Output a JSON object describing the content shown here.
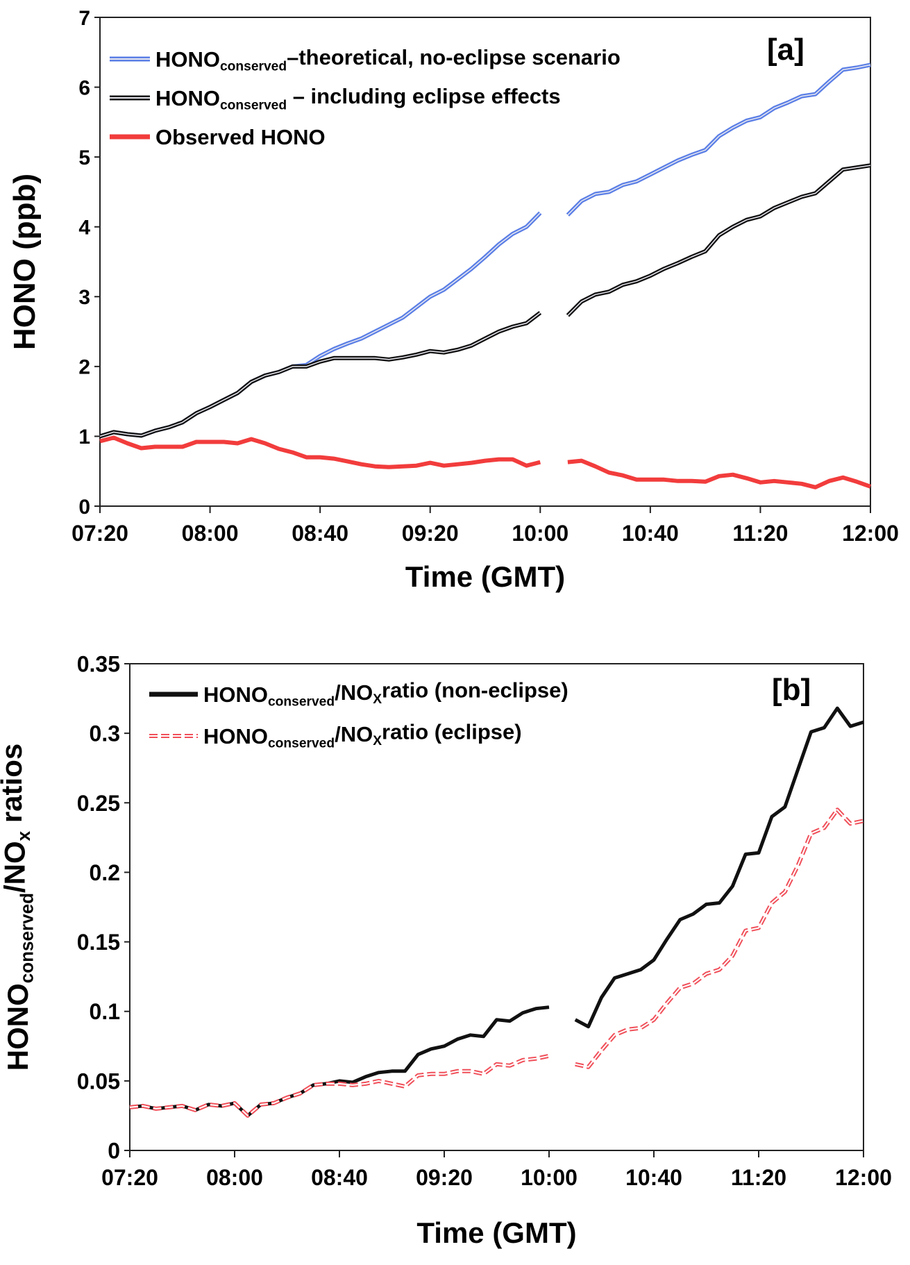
{
  "chart_data": [
    {
      "type": "line",
      "panel_label": "[a]",
      "xlabel": "Time (GMT)",
      "ylabel": "HONO (ppb)",
      "ylim": [
        0,
        7
      ],
      "yticks": [
        "0",
        "1",
        "2",
        "3",
        "4",
        "5",
        "6",
        "7"
      ],
      "xticks": [
        "07:20",
        "08:00",
        "08:40",
        "09:20",
        "10:00",
        "10:40",
        "11:20",
        "12:00"
      ],
      "grid": false,
      "legend_position": "top-left",
      "x": [
        "07:20",
        "07:25",
        "07:30",
        "07:35",
        "07:40",
        "07:45",
        "07:50",
        "07:55",
        "08:00",
        "08:05",
        "08:10",
        "08:15",
        "08:20",
        "08:25",
        "08:30",
        "08:35",
        "08:40",
        "08:45",
        "08:50",
        "08:55",
        "09:00",
        "09:05",
        "09:10",
        "09:15",
        "09:20",
        "09:25",
        "09:30",
        "09:35",
        "09:40",
        "09:45",
        "09:50",
        "09:55",
        "10:00",
        "10:05",
        "10:10",
        "10:15",
        "10:20",
        "10:25",
        "10:30",
        "10:35",
        "10:40",
        "10:45",
        "10:50",
        "10:55",
        "11:00",
        "11:05",
        "11:10",
        "11:15",
        "11:20",
        "11:25",
        "11:30",
        "11:35",
        "11:40",
        "11:45",
        "11:50",
        "11:55",
        "12:00"
      ],
      "series": [
        {
          "name_main": "HONO",
          "name_sub": "conserved",
          "name_rest": "–theoretical, no-eclipse scenario",
          "color": "#5b7fe6",
          "style": "double",
          "values": [
            1.0,
            1.06,
            1.03,
            1.01,
            1.08,
            1.13,
            1.2,
            1.33,
            1.42,
            1.52,
            1.62,
            1.78,
            1.87,
            1.92,
            2.0,
            2.02,
            2.15,
            2.25,
            2.33,
            2.4,
            2.5,
            2.6,
            2.7,
            2.85,
            3.0,
            3.1,
            3.25,
            3.4,
            3.57,
            3.75,
            3.9,
            4.0,
            4.2,
            null,
            4.17,
            4.37,
            4.47,
            4.5,
            4.6,
            4.65,
            4.75,
            4.85,
            4.95,
            5.03,
            5.1,
            5.3,
            5.42,
            5.52,
            5.57,
            5.7,
            5.78,
            5.87,
            5.9,
            6.08,
            6.25,
            6.28,
            6.32
          ]
        },
        {
          "name_main": "HONO",
          "name_sub": "conserved",
          "name_rest": " – including eclipse effects",
          "color": "#111111",
          "style": "double",
          "values": [
            1.0,
            1.06,
            1.03,
            1.01,
            1.08,
            1.13,
            1.2,
            1.33,
            1.42,
            1.52,
            1.62,
            1.78,
            1.87,
            1.92,
            2.0,
            2.0,
            2.07,
            2.12,
            2.12,
            2.12,
            2.12,
            2.1,
            2.13,
            2.17,
            2.22,
            2.2,
            2.24,
            2.3,
            2.4,
            2.5,
            2.57,
            2.62,
            2.77,
            null,
            2.73,
            2.93,
            3.03,
            3.07,
            3.17,
            3.22,
            3.3,
            3.4,
            3.48,
            3.57,
            3.65,
            3.88,
            4.0,
            4.1,
            4.15,
            4.27,
            4.35,
            4.43,
            4.48,
            4.65,
            4.82,
            4.85,
            4.88
          ]
        },
        {
          "name_main": "Observed HONO",
          "name_sub": "",
          "name_rest": "",
          "color": "#f23c3c",
          "style": "solid",
          "values": [
            0.93,
            0.98,
            0.9,
            0.83,
            0.85,
            0.85,
            0.85,
            0.92,
            0.92,
            0.92,
            0.9,
            0.96,
            0.9,
            0.82,
            0.77,
            0.7,
            0.7,
            0.68,
            0.64,
            0.6,
            0.57,
            0.56,
            0.57,
            0.58,
            0.62,
            0.58,
            0.6,
            0.62,
            0.65,
            0.67,
            0.67,
            0.58,
            0.63,
            null,
            0.63,
            0.65,
            0.57,
            0.48,
            0.44,
            0.38,
            0.38,
            0.38,
            0.36,
            0.36,
            0.35,
            0.43,
            0.45,
            0.4,
            0.34,
            0.36,
            0.34,
            0.32,
            0.27,
            0.36,
            0.41,
            0.35,
            0.28
          ]
        }
      ]
    },
    {
      "type": "line",
      "panel_label": "[b]",
      "xlabel": "Time (GMT)",
      "ylabel_main": "HONO",
      "ylabel_sub": "conserved",
      "ylabel_mid": "/NO",
      "ylabel_sub2": "x",
      "ylabel_rest": " ratios",
      "ylim": [
        0,
        0.35
      ],
      "yticks": [
        "0",
        "0.05",
        "0.1",
        "0.15",
        "0.2",
        "0.25",
        "0.3",
        "0.35"
      ],
      "xticks": [
        "07:20",
        "08:00",
        "08:40",
        "09:20",
        "10:00",
        "10:40",
        "11:20",
        "12:00"
      ],
      "grid": false,
      "legend_position": "top-left",
      "x": [
        "07:20",
        "07:25",
        "07:30",
        "07:35",
        "07:40",
        "07:45",
        "07:50",
        "07:55",
        "08:00",
        "08:05",
        "08:10",
        "08:15",
        "08:20",
        "08:25",
        "08:30",
        "08:35",
        "08:40",
        "08:45",
        "08:50",
        "08:55",
        "09:00",
        "09:05",
        "09:10",
        "09:15",
        "09:20",
        "09:25",
        "09:30",
        "09:35",
        "09:40",
        "09:45",
        "09:50",
        "09:55",
        "10:00",
        "10:05",
        "10:10",
        "10:15",
        "10:20",
        "10:25",
        "10:30",
        "10:35",
        "10:40",
        "10:45",
        "10:50",
        "10:55",
        "11:00",
        "11:05",
        "11:10",
        "11:15",
        "11:20",
        "11:25",
        "11:30",
        "11:35",
        "11:40",
        "11:45",
        "11:50",
        "11:55",
        "12:00"
      ],
      "series": [
        {
          "name_main": "HONO",
          "name_sub": "conserved",
          "name_mid": "/NO",
          "name_sub2": "X",
          "name_rest": "ratio (non-eclipse)",
          "color": "#111111",
          "style": "solid",
          "values": [
            0.031,
            0.032,
            0.03,
            0.031,
            0.032,
            0.029,
            0.033,
            0.032,
            0.034,
            0.025,
            0.033,
            0.034,
            0.038,
            0.041,
            0.047,
            0.048,
            0.05,
            0.049,
            0.053,
            0.056,
            0.057,
            0.057,
            0.069,
            0.073,
            0.075,
            0.08,
            0.083,
            0.082,
            0.094,
            0.093,
            0.099,
            0.102,
            0.103,
            null,
            0.094,
            0.089,
            0.11,
            0.124,
            0.127,
            0.13,
            0.137,
            0.152,
            0.166,
            0.17,
            0.177,
            0.178,
            0.19,
            0.213,
            0.214,
            0.24,
            0.247,
            0.274,
            0.301,
            0.304,
            0.318,
            0.305,
            0.308
          ]
        },
        {
          "name_main": "HONO",
          "name_sub": "conserved",
          "name_mid": "/NO",
          "name_sub2": "X",
          "name_rest": "ratio (eclipse)",
          "color": "#f0505a",
          "style": "dashed",
          "values": [
            0.031,
            0.032,
            0.03,
            0.031,
            0.032,
            0.029,
            0.033,
            0.032,
            0.034,
            0.025,
            0.033,
            0.034,
            0.038,
            0.041,
            0.047,
            0.048,
            0.048,
            0.047,
            0.048,
            0.05,
            0.048,
            0.046,
            0.054,
            0.055,
            0.055,
            0.057,
            0.057,
            0.055,
            0.062,
            0.061,
            0.065,
            0.066,
            0.068,
            null,
            0.062,
            0.06,
            0.072,
            0.083,
            0.087,
            0.088,
            0.094,
            0.106,
            0.117,
            0.12,
            0.127,
            0.13,
            0.14,
            0.158,
            0.16,
            0.178,
            0.186,
            0.205,
            0.228,
            0.232,
            0.245,
            0.235,
            0.237
          ]
        }
      ]
    }
  ]
}
